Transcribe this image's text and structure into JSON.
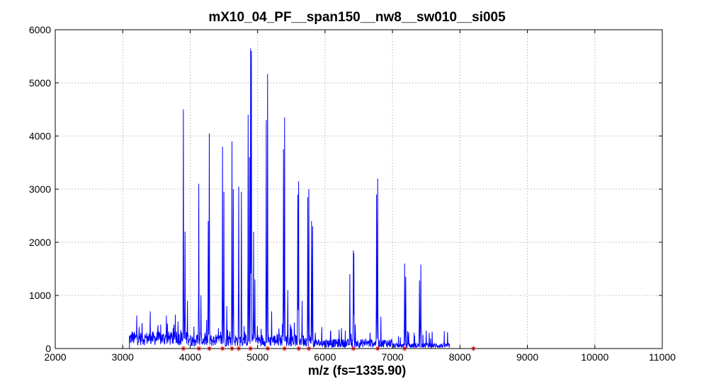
{
  "chart_data": {
    "type": "line",
    "title": "mX10_04_PF__span150__nw8__sw010__si005",
    "xlabel": "m/z (fs=1335.90)",
    "ylabel": "",
    "xlim": [
      2000,
      11000
    ],
    "ylim": [
      0,
      6000
    ],
    "x_ticks": [
      2000,
      3000,
      4000,
      5000,
      6000,
      7000,
      8000,
      9000,
      10000,
      11000
    ],
    "y_ticks": [
      0,
      1000,
      2000,
      3000,
      4000,
      5000,
      6000
    ],
    "x_tick_labels": [
      "2000",
      "3000",
      "4000",
      "5000",
      "6000",
      "7000",
      "8000",
      "9000",
      "10000",
      "11000"
    ],
    "y_tick_labels": [
      "0",
      "1000",
      "2000",
      "3000",
      "4000",
      "5000",
      "6000"
    ],
    "grid": true,
    "series": [
      {
        "color": "#0000ff",
        "x_range": [
          3100,
          7850
        ],
        "peaks": [
          {
            "x": 3140,
            "y": 320
          },
          {
            "x": 3210,
            "y": 620
          },
          {
            "x": 3290,
            "y": 480
          },
          {
            "x": 3410,
            "y": 700
          },
          {
            "x": 3520,
            "y": 380
          },
          {
            "x": 3650,
            "y": 620
          },
          {
            "x": 3780,
            "y": 640
          },
          {
            "x": 3900,
            "y": 4500
          },
          {
            "x": 3925,
            "y": 2200
          },
          {
            "x": 3960,
            "y": 900
          },
          {
            "x": 4130,
            "y": 3100
          },
          {
            "x": 4160,
            "y": 1000
          },
          {
            "x": 4285,
            "y": 4050
          },
          {
            "x": 4270,
            "y": 2400
          },
          {
            "x": 4480,
            "y": 3800
          },
          {
            "x": 4500,
            "y": 2950
          },
          {
            "x": 4545,
            "y": 800
          },
          {
            "x": 4620,
            "y": 3900
          },
          {
            "x": 4640,
            "y": 3000
          },
          {
            "x": 4720,
            "y": 3050
          },
          {
            "x": 4760,
            "y": 2950
          },
          {
            "x": 4860,
            "y": 4400
          },
          {
            "x": 4880,
            "y": 3600
          },
          {
            "x": 4895,
            "y": 5650
          },
          {
            "x": 4910,
            "y": 5600
          },
          {
            "x": 4940,
            "y": 2200
          },
          {
            "x": 4960,
            "y": 1300
          },
          {
            "x": 5150,
            "y": 5170
          },
          {
            "x": 5130,
            "y": 4300
          },
          {
            "x": 5210,
            "y": 700
          },
          {
            "x": 5400,
            "y": 4350
          },
          {
            "x": 5385,
            "y": 3750
          },
          {
            "x": 5450,
            "y": 1100
          },
          {
            "x": 5610,
            "y": 3150
          },
          {
            "x": 5595,
            "y": 2900
          },
          {
            "x": 5660,
            "y": 900
          },
          {
            "x": 5760,
            "y": 3000
          },
          {
            "x": 5745,
            "y": 2850
          },
          {
            "x": 5800,
            "y": 2400
          },
          {
            "x": 5815,
            "y": 2300
          },
          {
            "x": 6370,
            "y": 1400
          },
          {
            "x": 6420,
            "y": 1850
          },
          {
            "x": 6430,
            "y": 1800
          },
          {
            "x": 6780,
            "y": 3200
          },
          {
            "x": 6765,
            "y": 2900
          },
          {
            "x": 6830,
            "y": 600
          },
          {
            "x": 7180,
            "y": 1600
          },
          {
            "x": 7195,
            "y": 1350
          },
          {
            "x": 7420,
            "y": 1580
          },
          {
            "x": 7400,
            "y": 1280
          },
          {
            "x": 7500,
            "y": 340
          }
        ]
      }
    ],
    "markers": {
      "color": "#ff0000",
      "symbol": "*",
      "x": [
        3900,
        4130,
        4285,
        4480,
        4620,
        4720,
        4895,
        5150,
        5400,
        5610,
        5760,
        6420,
        6780,
        7180,
        8200
      ],
      "y": [
        0,
        0,
        0,
        0,
        0,
        0,
        0,
        0,
        0,
        0,
        0,
        0,
        0,
        0,
        0
      ]
    }
  }
}
